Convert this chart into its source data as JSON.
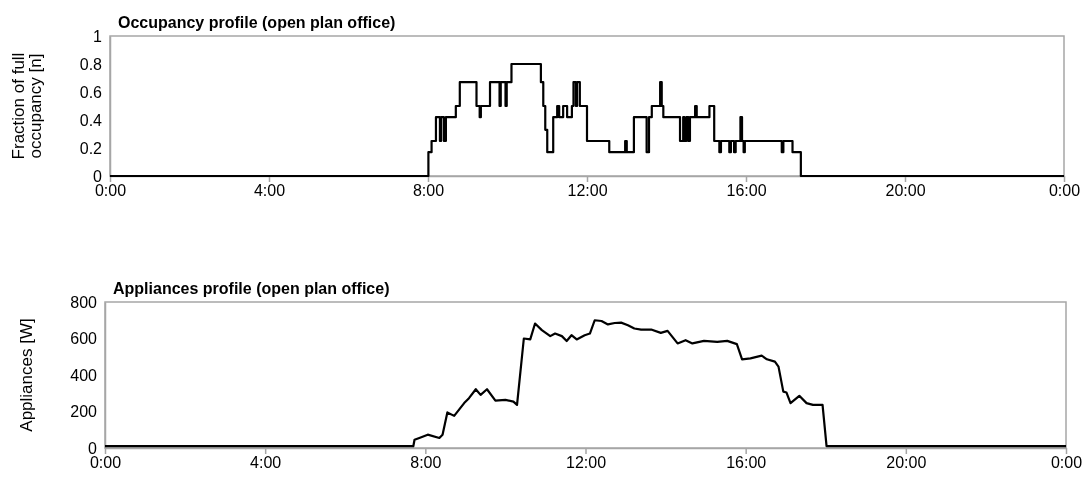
{
  "chart_data": [
    {
      "type": "step",
      "title": "Occupancy profile (open plan office)",
      "ylabel": "Fraction of full occupancy [n]",
      "xlim": [
        0,
        24
      ],
      "ylim": [
        0,
        1
      ],
      "xticks": [
        {
          "value": 0,
          "label": "0:00"
        },
        {
          "value": 4,
          "label": "4:00"
        },
        {
          "value": 8,
          "label": "8:00"
        },
        {
          "value": 12,
          "label": "12:00"
        },
        {
          "value": 16,
          "label": "16:00"
        },
        {
          "value": 20,
          "label": "20:00"
        },
        {
          "value": 24,
          "label": "0:00"
        }
      ],
      "yticks": [
        0,
        0.2,
        0.4,
        0.6,
        0.8,
        1
      ],
      "grid": false,
      "series": [
        {
          "color": "#000000",
          "x": [
            0,
            8.01,
            8.09,
            8.2,
            8.3,
            8.33,
            8.4,
            8.45,
            8.7,
            8.8,
            9.22,
            9.3,
            9.33,
            9.56,
            9.8,
            9.83,
            9.95,
            9.98,
            10.1,
            10.84,
            10.9,
            10.95,
            11.0,
            11.15,
            11.25,
            11.3,
            11.4,
            11.5,
            11.62,
            11.66,
            11.72,
            11.75,
            11.82,
            12.0,
            12.56,
            12.96,
            13.0,
            13.18,
            13.5,
            13.56,
            13.63,
            13.84,
            13.88,
            13.92,
            14.34,
            14.42,
            14.45,
            14.5,
            14.55,
            14.59,
            14.72,
            14.76,
            15.08,
            15.2,
            15.33,
            15.37,
            15.58,
            15.62,
            15.7,
            15.74,
            15.86,
            15.9,
            15.94,
            15.97,
            16.9,
            16.94,
            17.17,
            17.38,
            24
          ],
          "values": [
            0,
            0.17,
            0.25,
            0.42,
            0.25,
            0.42,
            0.25,
            0.42,
            0.5,
            0.67,
            0.5,
            0.42,
            0.5,
            0.67,
            0.5,
            0.67,
            0.5,
            0.67,
            0.8,
            0.67,
            0.5,
            0.33,
            0.17,
            0.42,
            0.5,
            0.42,
            0.5,
            0.42,
            0.5,
            0.67,
            0.5,
            0.67,
            0.5,
            0.25,
            0.17,
            0.25,
            0.17,
            0.42,
            0.17,
            0.42,
            0.5,
            0.67,
            0.5,
            0.42,
            0.25,
            0.42,
            0.25,
            0.42,
            0.25,
            0.42,
            0.5,
            0.42,
            0.5,
            0.25,
            0.17,
            0.25,
            0.17,
            0.25,
            0.17,
            0.25,
            0.42,
            0.25,
            0.17,
            0.25,
            0.17,
            0.25,
            0.17,
            0,
            0
          ]
        }
      ]
    },
    {
      "type": "line",
      "title": "Appliances profile (open plan office)",
      "ylabel": "Appliances [W]",
      "xlim": [
        0,
        24
      ],
      "ylim": [
        0,
        800
      ],
      "xticks": [
        {
          "value": 0,
          "label": "0:00"
        },
        {
          "value": 4,
          "label": "4:00"
        },
        {
          "value": 8,
          "label": "8:00"
        },
        {
          "value": 12,
          "label": "12:00"
        },
        {
          "value": 16,
          "label": "16:00"
        },
        {
          "value": 20,
          "label": "20:00"
        },
        {
          "value": 24,
          "label": "0:00"
        }
      ],
      "yticks": [
        0,
        200,
        400,
        600,
        800
      ],
      "grid": false,
      "series": [
        {
          "color": "#000000",
          "x": [
            0,
            7.7,
            7.73,
            7.85,
            8.06,
            8.35,
            8.43,
            8.55,
            8.72,
            8.97,
            9.09,
            9.26,
            9.38,
            9.54,
            9.75,
            10.0,
            10.2,
            10.29,
            10.46,
            10.62,
            10.74,
            10.91,
            11.12,
            11.24,
            11.41,
            11.53,
            11.65,
            11.78,
            11.98,
            12.11,
            12.23,
            12.4,
            12.56,
            12.73,
            12.89,
            13.06,
            13.22,
            13.39,
            13.64,
            13.88,
            14.05,
            14.3,
            14.5,
            14.67,
            14.96,
            15.29,
            15.54,
            15.78,
            15.91,
            16.12,
            16.4,
            16.53,
            16.73,
            16.82,
            16.94,
            17.02,
            17.12,
            17.34,
            17.52,
            17.68,
            17.92,
            18.02,
            24
          ],
          "values": [
            10,
            10,
            45,
            55,
            73,
            55,
            73,
            195,
            176,
            246,
            273,
            322,
            291,
            322,
            260,
            264,
            254,
            236,
            600,
            595,
            682,
            646,
            613,
            627,
            613,
            586,
            618,
            595,
            618,
            627,
            700,
            696,
            677,
            685,
            687,
            673,
            655,
            649,
            649,
            631,
            642,
            573,
            591,
            573,
            587,
            582,
            587,
            569,
            486,
            491,
            506,
            486,
            473,
            446,
            309,
            304,
            246,
            286,
            246,
            236,
            236,
            10,
            10
          ]
        }
      ]
    }
  ]
}
